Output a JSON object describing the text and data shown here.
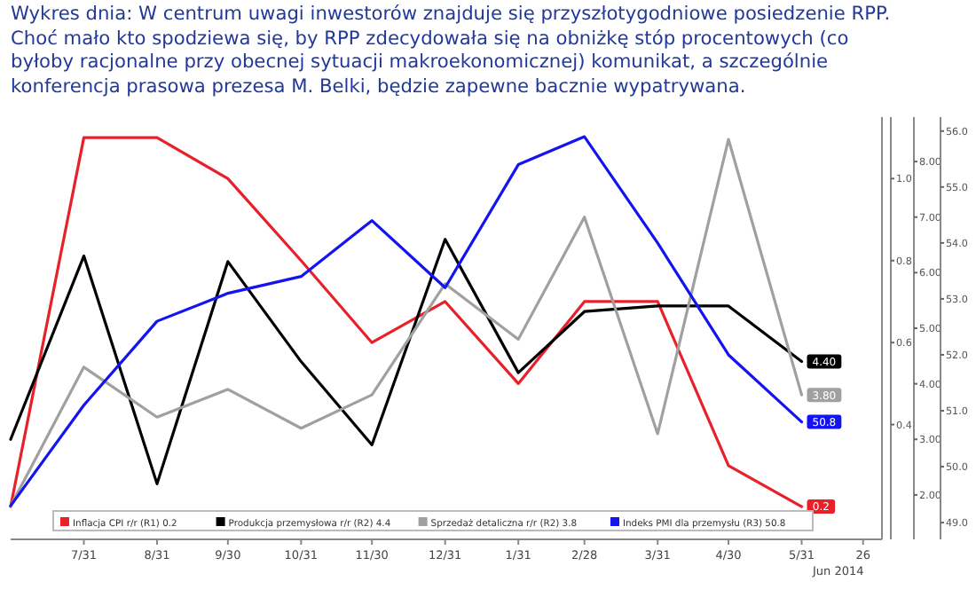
{
  "chart_data": {
    "type": "line",
    "title": "Wykres dnia: W centrum uwagi inwestorów znajduje się przyszłotygodniowe posiedzenie RPP. Choć mało kto spodziewa się, by RPP zdecydowała się na obniżkę stóp procentowych (co byłoby racjonalne przy obecnej sytuacji makroekonomicznej) komunikat, a szczególnie konferencja prasowa prezesa M. Belki, będzie zapewne bacznie wypatrywana.",
    "x": [
      "2013-06-30",
      "2013-07-31",
      "2013-08-31",
      "2013-09-30",
      "2013-10-31",
      "2013-11-30",
      "2013-12-31",
      "2014-01-31",
      "2014-02-28",
      "2014-03-31",
      "2014-04-30",
      "2014-05-31"
    ],
    "xlim": [
      "2013-06-30",
      "2014-07-04"
    ],
    "xticks": [
      {
        "value": "2013-07-31",
        "label": "7/31"
      },
      {
        "value": "2013-08-31",
        "label": "8/31"
      },
      {
        "value": "2013-09-30",
        "label": "9/30"
      },
      {
        "value": "2013-10-31",
        "label": "10/31"
      },
      {
        "value": "2013-11-30",
        "label": "11/30"
      },
      {
        "value": "2013-12-31",
        "label": "12/31"
      },
      {
        "value": "2014-01-31",
        "label": "1/31"
      },
      {
        "value": "2014-02-28",
        "label": "2/28"
      },
      {
        "value": "2014-03-31",
        "label": "3/31"
      },
      {
        "value": "2014-04-30",
        "label": "4/30"
      },
      {
        "value": "2014-05-31",
        "label": "5/31"
      },
      {
        "value": "2014-06-26",
        "label": "26"
      }
    ],
    "ylim": [
      0.12,
      1.15
    ],
    "yticks": [
      {
        "value": 0.4,
        "label": "0.4"
      },
      {
        "value": 0.6,
        "label": "0.6"
      },
      {
        "value": 0.8,
        "label": "0.8"
      },
      {
        "value": 1,
        "label": "1.0"
      }
    ],
    "y2lim": [
      1.2,
      8.8
    ],
    "y2ticks": [
      {
        "value": 2,
        "label": "2.00"
      },
      {
        "value": 3,
        "label": "3.00"
      },
      {
        "value": 4,
        "label": "4.00"
      },
      {
        "value": 5,
        "label": "5.00"
      },
      {
        "value": 6,
        "label": "6.00"
      },
      {
        "value": 7,
        "label": "7.00"
      },
      {
        "value": 8,
        "label": "8.00"
      }
    ],
    "y3lim": [
      48.7,
      56.25
    ],
    "y3ticks": [
      {
        "value": 49,
        "label": "49.0"
      },
      {
        "value": 50,
        "label": "50.0"
      },
      {
        "value": 51,
        "label": "51.0"
      },
      {
        "value": 52,
        "label": "52.0"
      },
      {
        "value": 53,
        "label": "53.0"
      },
      {
        "value": 54,
        "label": "54.0"
      },
      {
        "value": 55,
        "label": "55.0"
      },
      {
        "value": 56,
        "label": "56.0"
      }
    ],
    "legend": "bottom",
    "annotations": [
      "Jun 2014"
    ],
    "series": [
      {
        "name": "Inflacja CPI r/r (R1) 0.2",
        "color": "#e8202a",
        "axis": "y",
        "values": [
          0.2,
          1.1,
          1.1,
          1.0,
          0.8,
          0.6,
          0.7,
          0.5,
          0.7,
          0.7,
          0.3,
          0.2
        ],
        "value_labels": [
          null,
          null,
          null,
          null,
          null,
          null,
          null,
          null,
          null,
          null,
          null,
          "0.2"
        ]
      },
      {
        "name": "Produkcja przemysłowa r/r (R2) 4.4",
        "color": "#000000",
        "axis": "y2",
        "values": [
          3.0,
          6.3,
          2.2,
          6.2,
          4.4,
          2.9,
          6.6,
          4.2,
          5.3,
          5.4,
          5.4,
          4.4
        ],
        "value_labels": [
          null,
          null,
          null,
          null,
          null,
          null,
          null,
          null,
          null,
          null,
          null,
          "4.40"
        ]
      },
      {
        "name": "Sprzedaż detaliczna r/r (R2) 3.8",
        "color": "#a0a0a0",
        "axis": "y2",
        "values": [
          1.8,
          4.3,
          3.4,
          3.9,
          3.2,
          3.8,
          5.8,
          4.8,
          7.0,
          3.1,
          8.4,
          3.8
        ],
        "value_labels": [
          null,
          null,
          null,
          null,
          null,
          null,
          null,
          null,
          null,
          null,
          null,
          "3.80"
        ]
      },
      {
        "name": "Indeks PMI dla przemysłu (R3) 50.8",
        "color": "#1414f0",
        "axis": "y3",
        "values": [
          49.3,
          51.1,
          52.6,
          53.1,
          53.4,
          54.4,
          53.2,
          55.4,
          55.9,
          54.0,
          52.0,
          50.8
        ],
        "value_labels": [
          null,
          null,
          null,
          null,
          null,
          null,
          null,
          null,
          null,
          null,
          null,
          "50.8"
        ]
      }
    ]
  }
}
